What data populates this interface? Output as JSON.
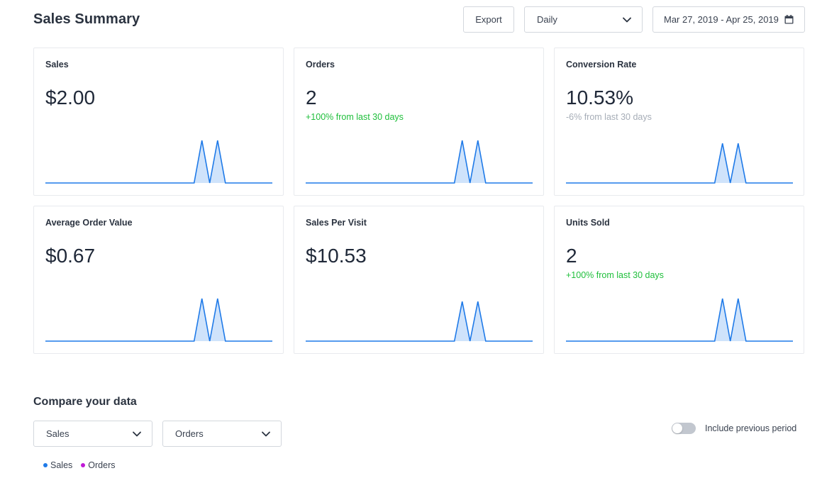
{
  "header": {
    "title": "Sales Summary",
    "export_label": "Export",
    "interval_value": "Daily",
    "date_range": "Mar 27, 2019 - Apr 25, 2019"
  },
  "cards": [
    {
      "label": "Sales",
      "value": "$2.00",
      "delta": "",
      "delta_color": "",
      "chart_data": {
        "type": "area",
        "values": [
          0,
          0,
          0,
          0,
          0,
          0,
          0,
          0,
          0,
          0,
          0,
          0,
          0,
          0,
          0,
          0,
          0,
          0,
          0,
          0,
          1,
          0,
          1,
          0,
          0,
          0,
          0,
          0,
          0,
          0
        ],
        "color": "#1f7ae8"
      }
    },
    {
      "label": "Orders",
      "value": "2",
      "delta": "+100% from last 30 days",
      "delta_color": "#1fbf3b",
      "chart_data": {
        "type": "area",
        "values": [
          0,
          0,
          0,
          0,
          0,
          0,
          0,
          0,
          0,
          0,
          0,
          0,
          0,
          0,
          0,
          0,
          0,
          0,
          0,
          0,
          1,
          0,
          1,
          0,
          0,
          0,
          0,
          0,
          0,
          0
        ],
        "color": "#1f7ae8"
      }
    },
    {
      "label": "Conversion Rate",
      "value": "10.53%",
      "delta": "-6% from last 30 days",
      "delta_color": "#a6adb7",
      "chart_data": {
        "type": "area",
        "values": [
          0,
          0,
          0,
          0,
          0,
          0,
          0,
          0,
          0,
          0,
          0,
          0,
          0,
          0,
          0,
          0,
          0,
          0,
          0,
          0,
          0.93,
          0,
          0.93,
          0,
          0,
          0,
          0,
          0,
          0,
          0
        ],
        "color": "#1f7ae8"
      }
    },
    {
      "label": "Average Order Value",
      "value": "$0.67",
      "delta": "",
      "delta_color": "",
      "chart_data": {
        "type": "area",
        "values": [
          0,
          0,
          0,
          0,
          0,
          0,
          0,
          0,
          0,
          0,
          0,
          0,
          0,
          0,
          0,
          0,
          0,
          0,
          0,
          0,
          1,
          0,
          1,
          0,
          0,
          0,
          0,
          0,
          0,
          0
        ],
        "color": "#1f7ae8"
      }
    },
    {
      "label": "Sales Per Visit",
      "value": "$10.53",
      "delta": "",
      "delta_color": "",
      "chart_data": {
        "type": "area",
        "values": [
          0,
          0,
          0,
          0,
          0,
          0,
          0,
          0,
          0,
          0,
          0,
          0,
          0,
          0,
          0,
          0,
          0,
          0,
          0,
          0,
          0.93,
          0,
          0.93,
          0,
          0,
          0,
          0,
          0,
          0,
          0
        ],
        "color": "#1f7ae8"
      }
    },
    {
      "label": "Units Sold",
      "value": "2",
      "delta": "+100% from last 30 days",
      "delta_color": "#1fbf3b",
      "chart_data": {
        "type": "area",
        "values": [
          0,
          0,
          0,
          0,
          0,
          0,
          0,
          0,
          0,
          0,
          0,
          0,
          0,
          0,
          0,
          0,
          0,
          0,
          0,
          0,
          1,
          0,
          1,
          0,
          0,
          0,
          0,
          0,
          0,
          0
        ],
        "color": "#1f7ae8"
      }
    }
  ],
  "compare": {
    "title": "Compare your data",
    "select_a": "Sales",
    "select_b": "Orders",
    "toggle_label": "Include previous period",
    "toggle_on": false,
    "legend": [
      {
        "label": "Sales",
        "color": "#1f7ae8"
      },
      {
        "label": "Orders",
        "color": "#c019d6"
      }
    ]
  },
  "icons": {
    "dropdown": "chevron-down-icon",
    "date": "calendar-icon"
  }
}
